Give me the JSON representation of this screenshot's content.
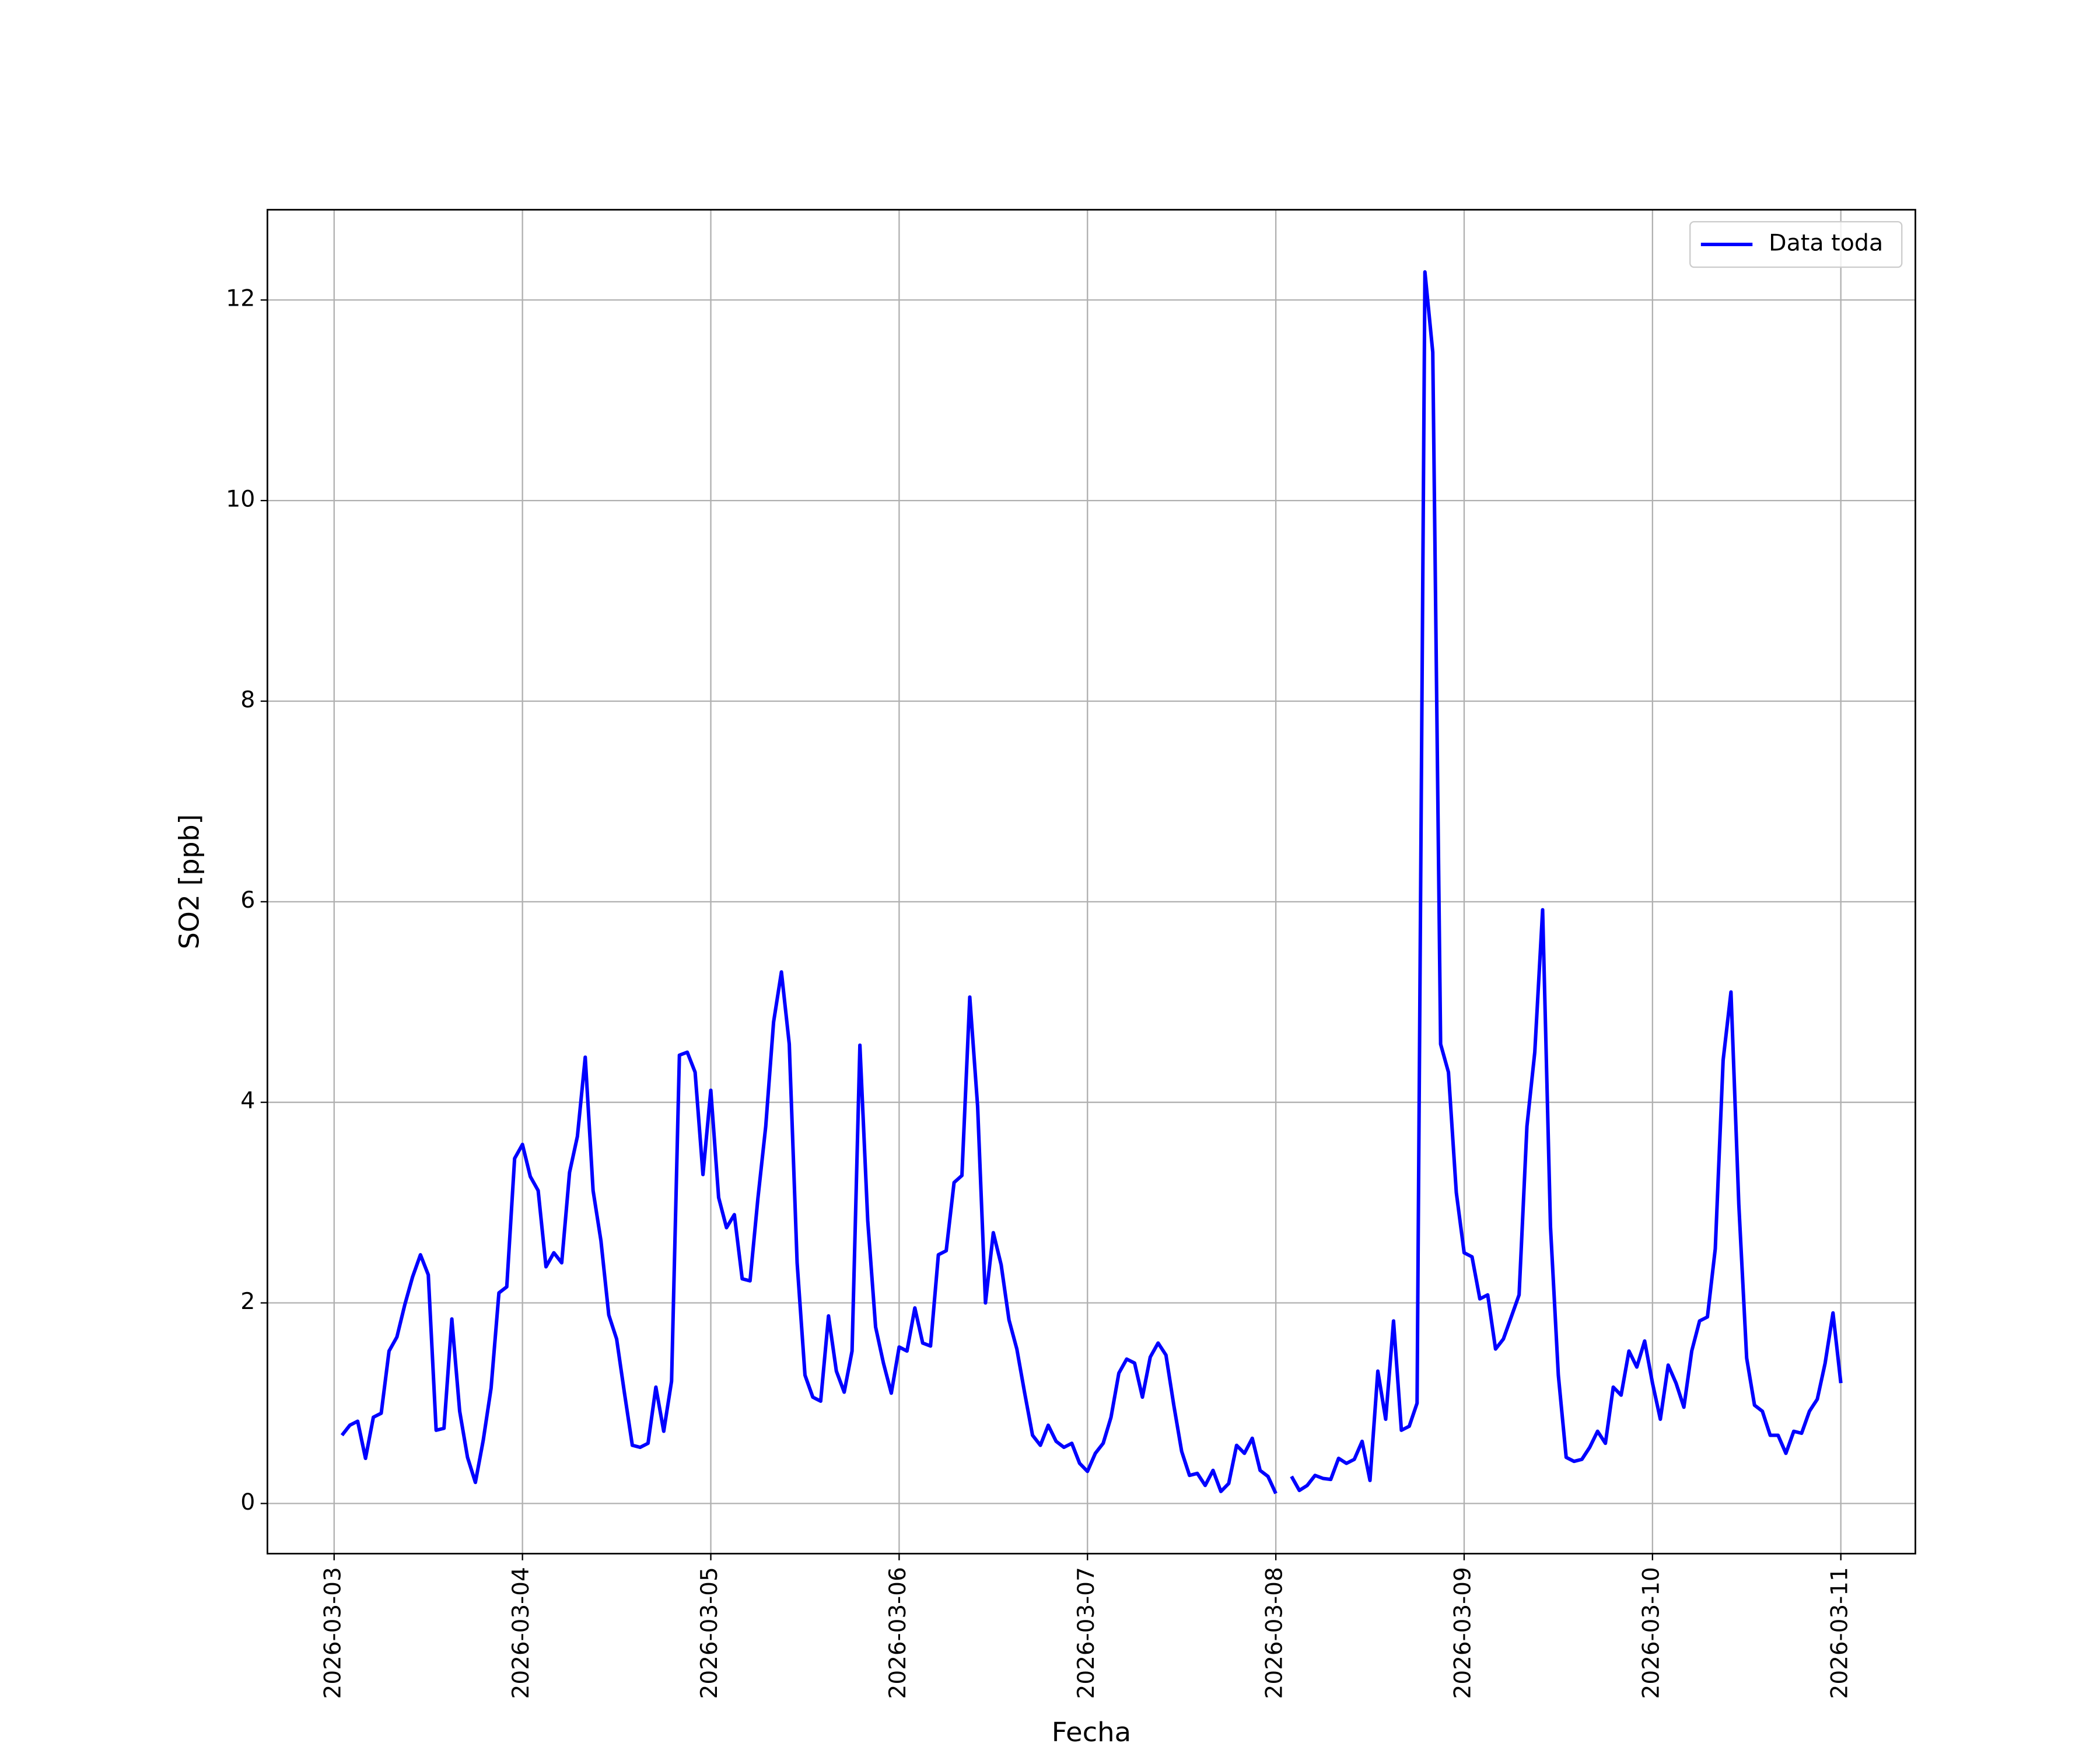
{
  "chart_data": {
    "type": "line",
    "x_label": "Fecha",
    "y_label": "SO2 [ppb]",
    "x": [
      "2026-03-03 01:00",
      "2026-03-03 02:00",
      "2026-03-03 03:00",
      "2026-03-03 04:00",
      "2026-03-03 05:00",
      "2026-03-03 06:00",
      "2026-03-03 07:00",
      "2026-03-03 08:00",
      "2026-03-03 09:00",
      "2026-03-03 10:00",
      "2026-03-03 11:00",
      "2026-03-03 12:00",
      "2026-03-03 13:00",
      "2026-03-03 14:00",
      "2026-03-03 15:00",
      "2026-03-03 16:00",
      "2026-03-03 17:00",
      "2026-03-03 18:00",
      "2026-03-03 19:00",
      "2026-03-03 20:00",
      "2026-03-03 21:00",
      "2026-03-03 22:00",
      "2026-03-03 23:00",
      "2026-03-04 00:00",
      "2026-03-04 01:00",
      "2026-03-04 02:00",
      "2026-03-04 03:00",
      "2026-03-04 04:00",
      "2026-03-04 05:00",
      "2026-03-04 06:00",
      "2026-03-04 07:00",
      "2026-03-04 08:00",
      "2026-03-04 09:00",
      "2026-03-04 10:00",
      "2026-03-04 11:00",
      "2026-03-04 12:00",
      "2026-03-04 13:00",
      "2026-03-04 14:00",
      "2026-03-04 15:00",
      "2026-03-04 16:00",
      "2026-03-04 17:00",
      "2026-03-04 18:00",
      "2026-03-04 19:00",
      "2026-03-04 20:00",
      "2026-03-04 21:00",
      "2026-03-04 22:00",
      "2026-03-04 23:00",
      "2026-03-05 00:00",
      "2026-03-05 01:00",
      "2026-03-05 02:00",
      "2026-03-05 03:00",
      "2026-03-05 04:00",
      "2026-03-05 05:00",
      "2026-03-05 06:00",
      "2026-03-05 07:00",
      "2026-03-05 08:00",
      "2026-03-05 09:00",
      "2026-03-05 10:00",
      "2026-03-05 11:00",
      "2026-03-05 12:00",
      "2026-03-05 13:00",
      "2026-03-05 14:00",
      "2026-03-05 15:00",
      "2026-03-05 16:00",
      "2026-03-05 17:00",
      "2026-03-05 18:00",
      "2026-03-05 19:00",
      "2026-03-05 20:00",
      "2026-03-05 21:00",
      "2026-03-05 22:00",
      "2026-03-05 23:00",
      "2026-03-06 00:00",
      "2026-03-06 01:00",
      "2026-03-06 02:00",
      "2026-03-06 03:00",
      "2026-03-06 04:00",
      "2026-03-06 05:00",
      "2026-03-06 06:00",
      "2026-03-06 07:00",
      "2026-03-06 08:00",
      "2026-03-06 09:00",
      "2026-03-06 10:00",
      "2026-03-06 11:00",
      "2026-03-06 12:00",
      "2026-03-06 13:00",
      "2026-03-06 14:00",
      "2026-03-06 15:00",
      "2026-03-06 16:00",
      "2026-03-06 17:00",
      "2026-03-06 18:00",
      "2026-03-06 19:00",
      "2026-03-06 20:00",
      "2026-03-06 21:00",
      "2026-03-06 22:00",
      "2026-03-06 23:00",
      "2026-03-07 00:00",
      "2026-03-07 01:00",
      "2026-03-07 02:00",
      "2026-03-07 03:00",
      "2026-03-07 04:00",
      "2026-03-07 05:00",
      "2026-03-07 06:00",
      "2026-03-07 07:00",
      "2026-03-07 08:00",
      "2026-03-07 09:00",
      "2026-03-07 10:00",
      "2026-03-07 11:00",
      "2026-03-07 12:00",
      "2026-03-07 13:00",
      "2026-03-07 14:00",
      "2026-03-07 15:00",
      "2026-03-07 16:00",
      "2026-03-07 17:00",
      "2026-03-07 18:00",
      "2026-03-07 19:00",
      "2026-03-07 20:00",
      "2026-03-07 21:00",
      "2026-03-07 22:00",
      "2026-03-07 23:00",
      "2026-03-08 00:00",
      "2026-03-08 01:00",
      "2026-03-08 02:00",
      "2026-03-08 03:00",
      "2026-03-08 04:00",
      "2026-03-08 05:00",
      "2026-03-08 06:00",
      "2026-03-08 07:00",
      "2026-03-08 08:00",
      "2026-03-08 09:00",
      "2026-03-08 10:00",
      "2026-03-08 11:00",
      "2026-03-08 12:00",
      "2026-03-08 13:00",
      "2026-03-08 14:00",
      "2026-03-08 15:00",
      "2026-03-08 16:00",
      "2026-03-08 17:00",
      "2026-03-08 18:00",
      "2026-03-08 19:00",
      "2026-03-08 20:00",
      "2026-03-08 21:00",
      "2026-03-08 22:00",
      "2026-03-08 23:00",
      "2026-03-09 00:00",
      "2026-03-09 01:00",
      "2026-03-09 02:00",
      "2026-03-09 03:00",
      "2026-03-09 04:00",
      "2026-03-09 05:00",
      "2026-03-09 06:00",
      "2026-03-09 07:00",
      "2026-03-09 08:00",
      "2026-03-09 09:00",
      "2026-03-09 10:00",
      "2026-03-09 11:00",
      "2026-03-09 12:00",
      "2026-03-09 13:00",
      "2026-03-09 14:00",
      "2026-03-09 15:00",
      "2026-03-09 16:00",
      "2026-03-09 17:00",
      "2026-03-09 18:00",
      "2026-03-09 19:00",
      "2026-03-09 20:00",
      "2026-03-09 21:00",
      "2026-03-09 22:00",
      "2026-03-09 23:00",
      "2026-03-10 00:00",
      "2026-03-10 01:00",
      "2026-03-10 02:00",
      "2026-03-10 03:00",
      "2026-03-10 04:00",
      "2026-03-10 05:00",
      "2026-03-10 06:00",
      "2026-03-10 07:00",
      "2026-03-10 08:00",
      "2026-03-10 09:00",
      "2026-03-10 10:00",
      "2026-03-10 11:00",
      "2026-03-10 12:00",
      "2026-03-10 13:00",
      "2026-03-10 14:00",
      "2026-03-10 15:00",
      "2026-03-10 16:00",
      "2026-03-10 17:00",
      "2026-03-10 18:00",
      "2026-03-10 19:00",
      "2026-03-10 20:00",
      "2026-03-10 21:00",
      "2026-03-10 22:00",
      "2026-03-10 23:00",
      "2026-03-11 00:00"
    ],
    "series": [
      {
        "name": "Data toda",
        "color": "#0000ff",
        "values": [
          0.68,
          0.78,
          0.82,
          0.45,
          0.86,
          0.9,
          1.52,
          1.66,
          1.98,
          2.26,
          2.48,
          2.28,
          0.73,
          0.75,
          1.84,
          0.92,
          0.46,
          0.21,
          0.63,
          1.15,
          2.1,
          2.16,
          3.44,
          3.58,
          3.26,
          3.12,
          2.36,
          2.5,
          2.4,
          3.3,
          3.66,
          4.45,
          3.12,
          2.62,
          1.88,
          1.64,
          1.1,
          0.58,
          0.56,
          0.6,
          1.16,
          0.72,
          1.22,
          4.47,
          4.5,
          4.3,
          3.28,
          4.12,
          3.05,
          2.75,
          2.88,
          2.24,
          2.22,
          3.04,
          3.76,
          4.8,
          5.3,
          4.58,
          2.4,
          1.28,
          1.06,
          1.02,
          1.87,
          1.32,
          1.11,
          1.52,
          4.57,
          2.82,
          1.76,
          1.4,
          1.1,
          1.56,
          1.52,
          1.95,
          1.6,
          1.57,
          2.48,
          2.52,
          3.2,
          3.27,
          5.05,
          3.96,
          2.0,
          2.7,
          2.38,
          1.83,
          1.54,
          1.1,
          0.68,
          0.58,
          0.78,
          0.62,
          0.56,
          0.6,
          0.4,
          0.32,
          0.5,
          0.6,
          0.86,
          1.3,
          1.44,
          1.4,
          1.06,
          1.46,
          1.6,
          1.48,
          0.98,
          0.52,
          0.28,
          0.3,
          0.18,
          0.33,
          0.12,
          0.2,
          0.58,
          0.5,
          0.65,
          0.33,
          0.27,
          0.1,
          null,
          0.27,
          0.13,
          0.18,
          0.28,
          0.25,
          0.24,
          0.45,
          0.4,
          0.44,
          0.62,
          0.23,
          1.32,
          0.84,
          1.82,
          0.73,
          0.77,
          1.0,
          12.28,
          11.48,
          4.58,
          4.3,
          3.1,
          2.5,
          2.46,
          2.04,
          2.08,
          1.54,
          1.64,
          1.86,
          2.08,
          3.76,
          4.5,
          5.92,
          2.76,
          1.28,
          0.46,
          0.42,
          0.44,
          0.56,
          0.72,
          0.6,
          1.16,
          1.08,
          1.52,
          1.36,
          1.62,
          1.2,
          0.84,
          1.38,
          1.2,
          0.96,
          1.52,
          1.82,
          1.86,
          2.54,
          4.42,
          5.1,
          2.98,
          1.45,
          0.98,
          0.92,
          0.68,
          0.68,
          0.5,
          0.72,
          0.7,
          0.92,
          1.04,
          1.4,
          1.9,
          1.2
        ]
      }
    ],
    "xlim": [
      "2026-03-02 15:30",
      "2026-03-11 09:30"
    ],
    "xticks": [
      "2026-03-03",
      "2026-03-04",
      "2026-03-05",
      "2026-03-06",
      "2026-03-07",
      "2026-03-08",
      "2026-03-09",
      "2026-03-10",
      "2026-03-11"
    ],
    "ylim": [
      -0.5,
      12.9
    ],
    "yticks": [
      0,
      2,
      4,
      6,
      8,
      10,
      12
    ],
    "grid": true,
    "legend": "upper right"
  }
}
